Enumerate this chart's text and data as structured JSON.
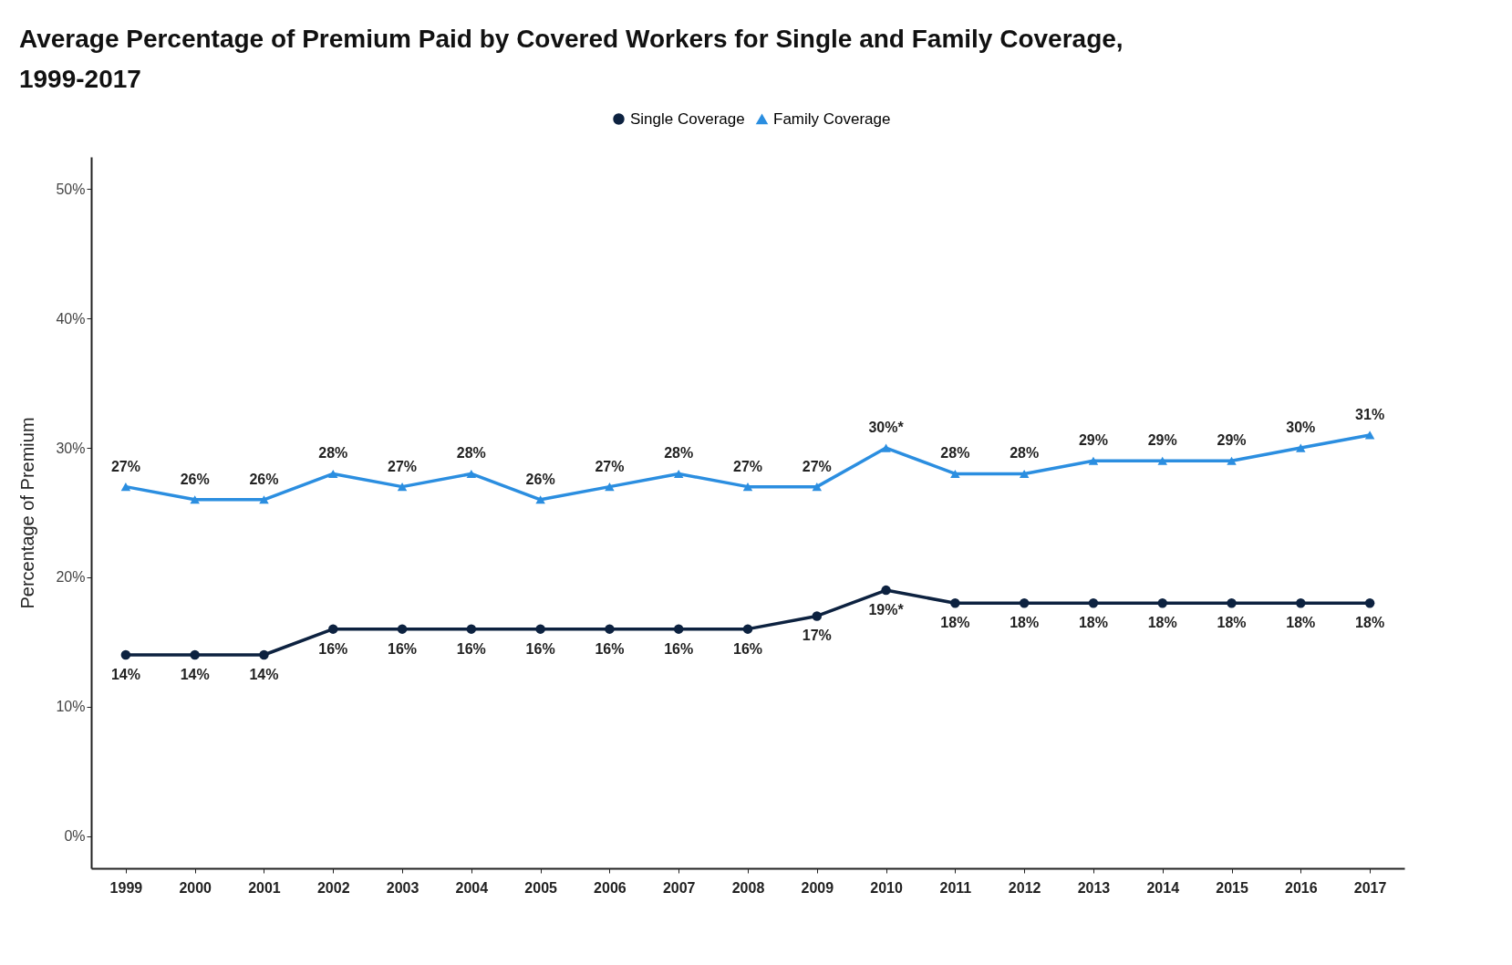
{
  "chart_data": {
    "type": "line",
    "title": "Average Percentage of Premium Paid by Covered Workers for Single and Family Coverage, 1999-2017",
    "ylabel": "Percentage of Premium",
    "categories": [
      "1999",
      "2000",
      "2001",
      "2002",
      "2003",
      "2004",
      "2005",
      "2006",
      "2007",
      "2008",
      "2009",
      "2010",
      "2011",
      "2012",
      "2013",
      "2014",
      "2015",
      "2016",
      "2017"
    ],
    "series": [
      {
        "name": "Single Coverage",
        "color": "#0d2240",
        "marker": "circle",
        "values": [
          14,
          14,
          14,
          16,
          16,
          16,
          16,
          16,
          16,
          16,
          17,
          19,
          18,
          18,
          18,
          18,
          18,
          18,
          18
        ],
        "value_labels": [
          "14%",
          "14%",
          "14%",
          "16%",
          "16%",
          "16%",
          "16%",
          "16%",
          "16%",
          "16%",
          "17%",
          "19%*",
          "18%",
          "18%",
          "18%",
          "18%",
          "18%",
          "18%",
          "18%"
        ]
      },
      {
        "name": "Family Coverage",
        "color": "#2b8ee0",
        "marker": "triangle",
        "values": [
          27,
          26,
          26,
          28,
          27,
          28,
          26,
          27,
          28,
          27,
          27,
          30,
          28,
          28,
          29,
          29,
          29,
          30,
          31
        ],
        "value_labels": [
          "27%",
          "26%",
          "26%",
          "28%",
          "27%",
          "28%",
          "26%",
          "27%",
          "28%",
          "27%",
          "27%",
          "30%*",
          "28%",
          "28%",
          "29%",
          "29%",
          "29%",
          "30%",
          "31%"
        ]
      }
    ],
    "ylim": [
      -2.5,
      52.5
    ],
    "yticks": [
      {
        "value": 0,
        "label": "0%"
      },
      {
        "value": 10,
        "label": "10%"
      },
      {
        "value": 20,
        "label": "20%"
      },
      {
        "value": 30,
        "label": "30%"
      },
      {
        "value": 40,
        "label": "40%"
      },
      {
        "value": 50,
        "label": "50%"
      }
    ],
    "legend": "top",
    "grid": false
  }
}
